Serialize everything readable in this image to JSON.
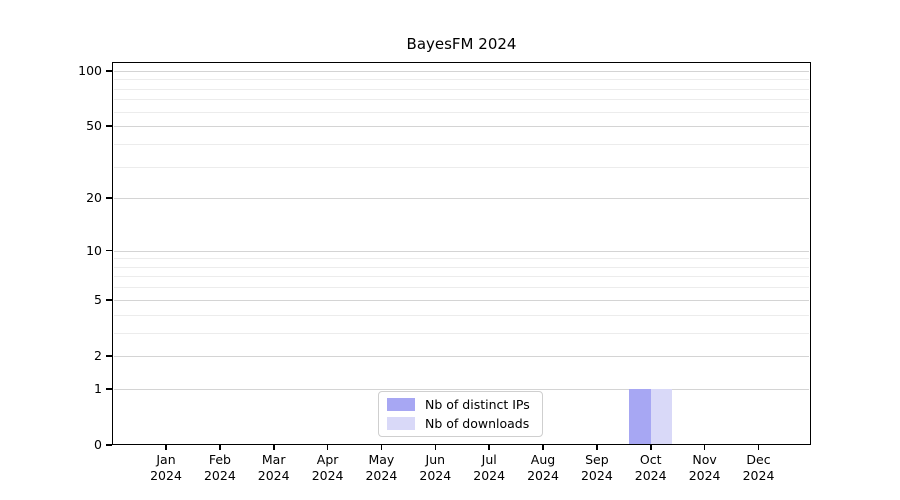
{
  "chart_data": {
    "type": "bar",
    "title": "BayesFM 2024",
    "categories": [
      "Jan",
      "Feb",
      "Mar",
      "Apr",
      "May",
      "Jun",
      "Jul",
      "Aug",
      "Sep",
      "Oct",
      "Nov",
      "Dec"
    ],
    "category_year": "2024",
    "series": [
      {
        "name": "Nb of distinct IPs",
        "color": "#a7a7f3",
        "values": [
          0,
          0,
          0,
          0,
          0,
          0,
          0,
          0,
          0,
          1,
          0,
          0
        ]
      },
      {
        "name": "Nb of downloads",
        "color": "#d9d9f8",
        "values": [
          0,
          0,
          0,
          0,
          0,
          0,
          0,
          0,
          0,
          1,
          0,
          0
        ]
      }
    ],
    "xlabel": "",
    "ylabel": "",
    "y_axis": {
      "scale": "log1p",
      "tick_values": [
        0,
        1,
        2,
        5,
        10,
        20,
        50,
        100
      ],
      "minor_tick_values": [
        3,
        4,
        6,
        7,
        8,
        9,
        30,
        40,
        60,
        70,
        80,
        90
      ],
      "max_value": 111.5
    },
    "ylim": [
      0,
      111.5
    ],
    "grid": {
      "major_color": "#d4d4d4",
      "minor_color": "#ececec",
      "horizontal_only": true
    },
    "legend": {
      "position": "bottom-center-inside",
      "entries": [
        "Nb of distinct IPs",
        "Nb of downloads"
      ]
    }
  }
}
